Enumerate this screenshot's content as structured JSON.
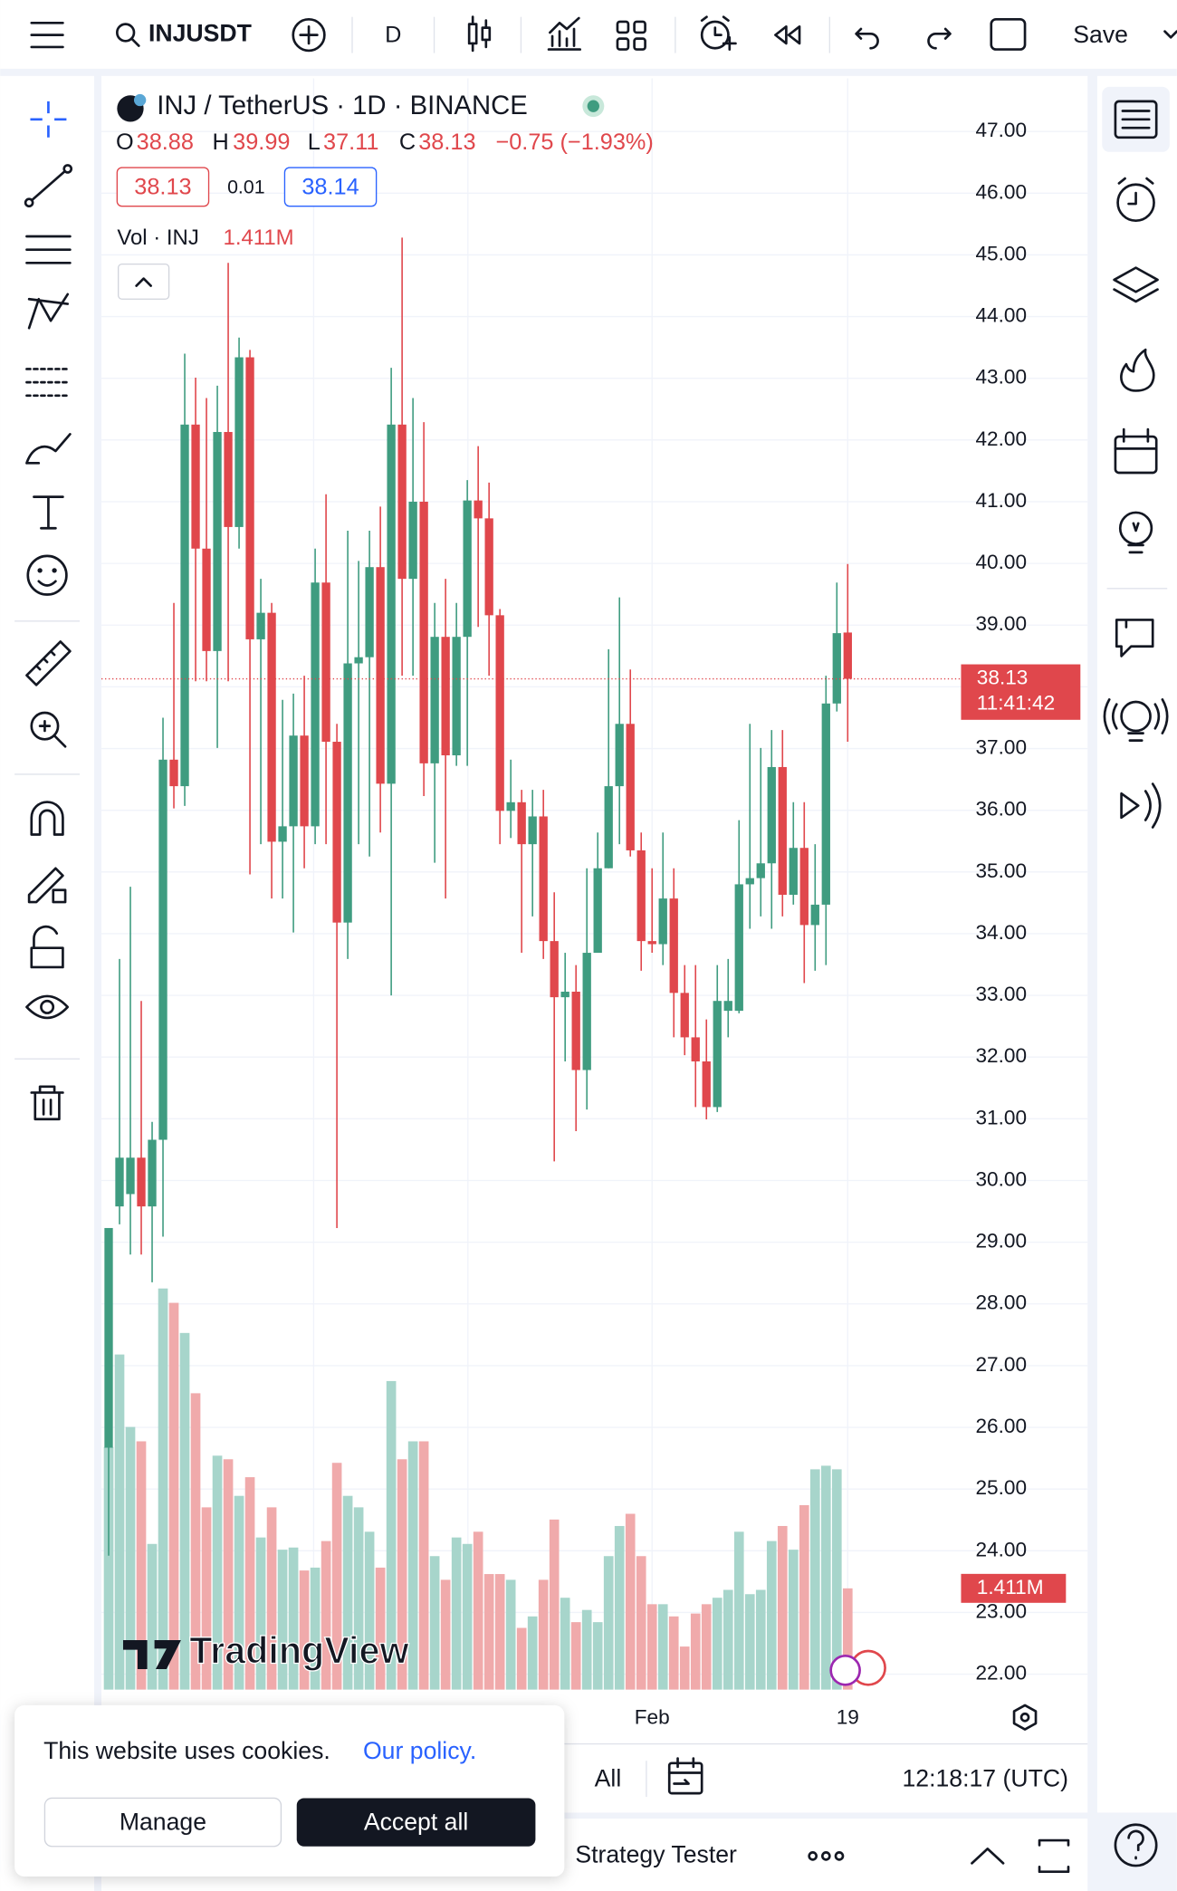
{
  "toolbar": {
    "symbol": "INJUSDT",
    "interval": "D",
    "save": "Save"
  },
  "chart_data": {
    "type": "candlestick",
    "title": "INJ / TetherUS · 1D · BINANCE",
    "legend": {
      "o_label": "O",
      "o": "38.88",
      "h_label": "H",
      "h": "39.99",
      "l_label": "L",
      "l": "37.11",
      "c_label": "C",
      "c": "38.13",
      "change": "−0.75 (−1.93%)"
    },
    "sell_price": "38.13",
    "spread": "0.01",
    "buy_price": "38.14",
    "volume_title": "Vol · INJ",
    "volume_legend": "1.411M",
    "last_price_label": "38.13",
    "countdown": "11:41:42",
    "last_volume_label": "1.411M",
    "up_color": "#3f9c80",
    "down_color": "#e0474c",
    "up_volume_color": "#a7d5cb",
    "down_volume_color": "#f0aaab",
    "categories": [
      null,
      null,
      null,
      null,
      null,
      null,
      null,
      null,
      null,
      null,
      null,
      null,
      null,
      null,
      null,
      null,
      null,
      null,
      null,
      null,
      null,
      null,
      null,
      null,
      null,
      null,
      null,
      null,
      null,
      null,
      null,
      null,
      null,
      null,
      null,
      null,
      null,
      null,
      null,
      null,
      null,
      null,
      null,
      null,
      null,
      null,
      null,
      null,
      null,
      null,
      "Feb",
      null,
      null,
      null,
      null,
      null,
      null,
      null,
      null,
      null,
      null,
      null,
      null,
      null,
      null,
      null,
      null,
      null,
      "19"
    ],
    "open": [
      25.67,
      29.58,
      29.78,
      30.37,
      29.58,
      30.66,
      36.82,
      36.39,
      42.25,
      40.24,
      38.58,
      42.13,
      40.59,
      43.34,
      38.77,
      39.2,
      35.49,
      35.74,
      37.21,
      35.74,
      39.69,
      37.11,
      34.18,
      38.38,
      38.48,
      39.94,
      36.43,
      42.25,
      39.75,
      41.0,
      36.76,
      38.81,
      36.89,
      38.81,
      41.02,
      40.73,
      39.16,
      35.99,
      36.13,
      35.45,
      35.9,
      33.88,
      32.97,
      33.06,
      31.79,
      33.69,
      35.06,
      36.39,
      37.4,
      35.35,
      33.88,
      33.83,
      34.57,
      33.04,
      32.32,
      31.93,
      31.19,
      32.75,
      32.75,
      34.8,
      34.9,
      35.14,
      36.7,
      34.63,
      35.39,
      34.14,
      34.47,
      37.73,
      38.88
    ],
    "high": [
      29.23,
      33.59,
      34.76,
      32.91,
      30.95,
      37.5,
      39.36,
      43.4,
      43.01,
      42.68,
      42.88,
      44.87,
      43.66,
      43.46,
      39.75,
      39.36,
      37.79,
      37.89,
      38.18,
      40.24,
      41.12,
      37.4,
      40.53,
      40.04,
      40.53,
      40.92,
      43.17,
      45.28,
      42.68,
      42.29,
      39.36,
      39.75,
      39.36,
      41.35,
      41.9,
      41.31,
      39.26,
      36.82,
      36.33,
      36.33,
      36.33,
      34.67,
      33.69,
      33.49,
      35.06,
      35.64,
      38.61,
      39.45,
      38.28,
      35.64,
      35.06,
      35.64,
      35.06,
      33.49,
      33.49,
      32.61,
      33.49,
      33.59,
      35.84,
      37.4,
      37.01,
      37.3,
      37.3,
      36.13,
      36.13,
      35.45,
      38.18,
      39.69,
      39.99
    ],
    "low": [
      23.92,
      29.29,
      28.8,
      28.8,
      28.35,
      29.09,
      36.03,
      36.07,
      38.09,
      38.09,
      37.01,
      38.09,
      40.24,
      34.96,
      35.45,
      34.57,
      34.57,
      34.02,
      35.06,
      35.45,
      35.45,
      29.23,
      33.59,
      35.45,
      35.25,
      35.64,
      33.0,
      38.18,
      38.18,
      36.23,
      35.15,
      34.57,
      36.72,
      36.72,
      38.97,
      38.18,
      35.45,
      35.55,
      33.69,
      34.28,
      33.59,
      30.31,
      31.93,
      30.8,
      31.15,
      33.69,
      35.06,
      35.45,
      35.25,
      33.4,
      33.69,
      33.49,
      32.32,
      32.03,
      31.19,
      30.99,
      31.11,
      32.32,
      32.71,
      34.08,
      34.28,
      34.08,
      34.28,
      34.47,
      33.2,
      33.4,
      33.49,
      37.6,
      37.11
    ],
    "close": [
      29.23,
      30.37,
      30.37,
      29.58,
      30.66,
      36.82,
      36.39,
      42.25,
      40.24,
      38.58,
      42.13,
      40.59,
      43.34,
      38.77,
      39.2,
      35.49,
      35.74,
      37.21,
      35.74,
      39.69,
      37.11,
      34.18,
      38.38,
      38.48,
      39.94,
      36.43,
      42.25,
      39.75,
      41.0,
      36.76,
      38.81,
      36.89,
      38.81,
      41.02,
      40.73,
      39.16,
      35.99,
      36.13,
      35.45,
      35.9,
      33.88,
      32.97,
      33.06,
      31.79,
      33.69,
      35.06,
      36.39,
      37.4,
      35.35,
      33.88,
      33.83,
      34.57,
      33.04,
      32.32,
      31.93,
      31.19,
      32.91,
      32.91,
      34.8,
      34.9,
      35.14,
      36.7,
      34.63,
      35.39,
      34.14,
      34.47,
      37.73,
      38.87,
      38.13
    ],
    "volume": [
      3.38,
      4.67,
      3.66,
      3.46,
      2.03,
      5.59,
      5.39,
      4.97,
      4.13,
      2.54,
      3.26,
      3.21,
      2.7,
      2.96,
      2.12,
      2.54,
      1.95,
      1.98,
      1.66,
      1.7,
      2.07,
      3.16,
      2.7,
      2.54,
      2.2,
      1.7,
      4.3,
      3.21,
      3.46,
      3.46,
      1.86,
      1.53,
      2.12,
      2.03,
      2.2,
      1.61,
      1.61,
      1.53,
      0.86,
      1.02,
      1.53,
      2.37,
      1.28,
      0.94,
      1.11,
      0.94,
      1.86,
      2.28,
      2.45,
      1.86,
      1.19,
      1.19,
      1.02,
      0.6,
      1.06,
      1.19,
      1.28,
      1.39,
      2.2,
      1.33,
      1.39,
      2.07,
      2.28,
      1.95,
      2.57,
      3.07,
      3.12,
      3.07,
      1.411
    ],
    "ylim": [
      21.75,
      47.86
    ],
    "yticks": [
      {
        "value": 22,
        "label": "22.00"
      },
      {
        "value": 23,
        "label": "23.00"
      },
      {
        "value": 24,
        "label": "24.00"
      },
      {
        "value": 25,
        "label": "25.00"
      },
      {
        "value": 26,
        "label": "26.00"
      },
      {
        "value": 27,
        "label": "27.00"
      },
      {
        "value": 28,
        "label": "28.00"
      },
      {
        "value": 29,
        "label": "29.00"
      },
      {
        "value": 30,
        "label": "30.00"
      },
      {
        "value": 31,
        "label": "31.00"
      },
      {
        "value": 32,
        "label": "32.00"
      },
      {
        "value": 33,
        "label": "33.00"
      },
      {
        "value": 34,
        "label": "34.00"
      },
      {
        "value": 35,
        "label": "35.00"
      },
      {
        "value": 36,
        "label": "36.00"
      },
      {
        "value": 37,
        "label": "37.00"
      },
      {
        "value": 38,
        "label": "38.00"
      },
      {
        "value": 39,
        "label": "39.00"
      },
      {
        "value": 40,
        "label": "40.00"
      },
      {
        "value": 41,
        "label": "41.00"
      },
      {
        "value": 42,
        "label": "42.00"
      },
      {
        "value": 43,
        "label": "43.00"
      },
      {
        "value": 44,
        "label": "44.00"
      },
      {
        "value": 45,
        "label": "45.00"
      },
      {
        "value": 46,
        "label": "46.00"
      },
      {
        "value": 47,
        "label": "47.00"
      }
    ],
    "grid": true,
    "watermark": "TradingView"
  },
  "bottom_bar": {
    "range": "All",
    "clock": "12:18:17 (UTC)",
    "strategy_tester": "Strategy Tester"
  },
  "cookie_banner": {
    "message": "This website uses cookies.",
    "link": "Our policy.",
    "manage": "Manage",
    "accept": "Accept all"
  }
}
